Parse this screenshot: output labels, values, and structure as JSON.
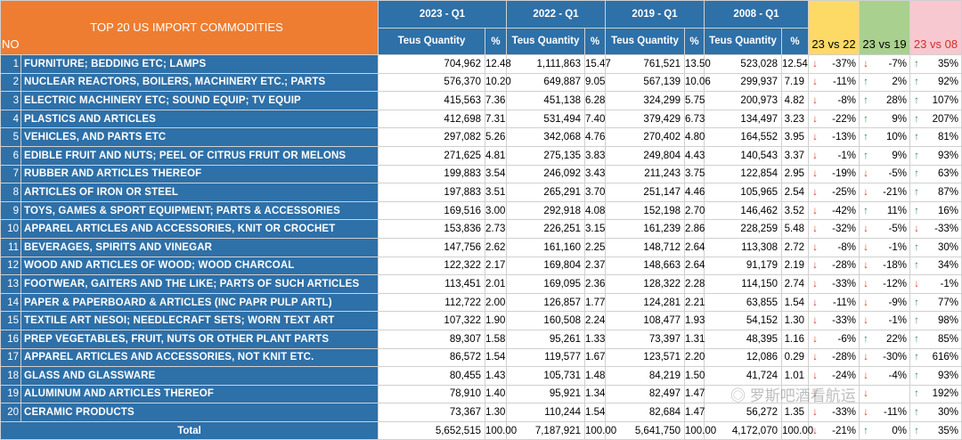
{
  "table_title": "TOP 20 US IMPORT COMMODITIES",
  "no_label": "NO",
  "period_headers": [
    "2023 - Q1",
    "2022 - Q1",
    "2019 - Q1",
    "2008 - Q1"
  ],
  "sub_headers": [
    {
      "qty": "Teus Quantity",
      "pct": "%"
    },
    {
      "qty": "Teus Quantity",
      "pct": "%"
    },
    {
      "qty": "Teus Quantity",
      "pct": "%"
    },
    {
      "qty": "Teus Quantity",
      "pct": "%"
    }
  ],
  "compare_headers": [
    "23 vs 22",
    "23 vs 19",
    "23 vs 08"
  ],
  "header_colors": {
    "orange": "#ee7d31",
    "blue": "#2e70a8",
    "yellow": "#fdd966",
    "green": "#a9d08e",
    "pink": "#f8c8d0"
  },
  "rows": [
    {
      "no": "1",
      "name": "FURNITURE; BEDDING ETC; LAMPS",
      "q23": "704,962",
      "p23": "12.48",
      "q22": "1,111,863",
      "p22": "15.47",
      "q19": "761,521",
      "p19": "13.50",
      "q08": "523,028",
      "p08": "12.54",
      "c1": "-37%",
      "c1d": "down",
      "c2": "-7%",
      "c2d": "down",
      "c3": "35%",
      "c3d": "up"
    },
    {
      "no": "2",
      "name": "NUCLEAR REACTORS, BOILERS, MACHINERY ETC.; PARTS",
      "q23": "576,370",
      "p23": "10.20",
      "q22": "649,887",
      "p22": "9.05",
      "q19": "567,139",
      "p19": "10.06",
      "q08": "299,937",
      "p08": "7.19",
      "c1": "-11%",
      "c1d": "down",
      "c2": "2%",
      "c2d": "up",
      "c3": "92%",
      "c3d": "up"
    },
    {
      "no": "3",
      "name": "ELECTRIC MACHINERY ETC; SOUND EQUIP; TV EQUIP",
      "q23": "415,563",
      "p23": "7.36",
      "q22": "451,138",
      "p22": "6.28",
      "q19": "324,299",
      "p19": "5.75",
      "q08": "200,973",
      "p08": "4.82",
      "c1": "-8%",
      "c1d": "down",
      "c2": "28%",
      "c2d": "up",
      "c3": "107%",
      "c3d": "up"
    },
    {
      "no": "4",
      "name": "PLASTICS AND ARTICLES",
      "q23": "412,698",
      "p23": "7.31",
      "q22": "531,494",
      "p22": "7.40",
      "q19": "379,429",
      "p19": "6.73",
      "q08": "134,497",
      "p08": "3.23",
      "c1": "-22%",
      "c1d": "down",
      "c2": "9%",
      "c2d": "up",
      "c3": "207%",
      "c3d": "up"
    },
    {
      "no": "5",
      "name": "VEHICLES, AND PARTS ETC",
      "q23": "297,082",
      "p23": "5.26",
      "q22": "342,068",
      "p22": "4.76",
      "q19": "270,402",
      "p19": "4.80",
      "q08": "164,552",
      "p08": "3.95",
      "c1": "-13%",
      "c1d": "down",
      "c2": "10%",
      "c2d": "up",
      "c3": "81%",
      "c3d": "up"
    },
    {
      "no": "6",
      "name": "EDIBLE FRUIT AND NUTS; PEEL OF CITRUS FRUIT OR MELONS",
      "q23": "271,625",
      "p23": "4.81",
      "q22": "275,135",
      "p22": "3.83",
      "q19": "249,804",
      "p19": "4.43",
      "q08": "140,543",
      "p08": "3.37",
      "c1": "-1%",
      "c1d": "down",
      "c2": "9%",
      "c2d": "up",
      "c3": "93%",
      "c3d": "up"
    },
    {
      "no": "7",
      "name": "RUBBER AND ARTICLES THEREOF",
      "q23": "199,883",
      "p23": "3.54",
      "q22": "246,092",
      "p22": "3.43",
      "q19": "211,243",
      "p19": "3.75",
      "q08": "122,854",
      "p08": "2.95",
      "c1": "-19%",
      "c1d": "down",
      "c2": "-5%",
      "c2d": "down",
      "c3": "63%",
      "c3d": "up"
    },
    {
      "no": "8",
      "name": "ARTICLES OF IRON OR STEEL",
      "q23": "197,883",
      "p23": "3.51",
      "q22": "265,291",
      "p22": "3.70",
      "q19": "251,147",
      "p19": "4.46",
      "q08": "105,965",
      "p08": "2.54",
      "c1": "-25%",
      "c1d": "down",
      "c2": "-21%",
      "c2d": "down",
      "c3": "87%",
      "c3d": "up"
    },
    {
      "no": "9",
      "name": "TOYS, GAMES & SPORT EQUIPMENT; PARTS & ACCESSORIES",
      "q23": "169,516",
      "p23": "3.00",
      "q22": "292,918",
      "p22": "4.08",
      "q19": "152,198",
      "p19": "2.70",
      "q08": "146,462",
      "p08": "3.52",
      "c1": "-42%",
      "c1d": "down",
      "c2": "11%",
      "c2d": "up",
      "c3": "16%",
      "c3d": "up"
    },
    {
      "no": "10",
      "name": "APPAREL ARTICLES AND ACCESSORIES, KNIT OR CROCHET",
      "q23": "153,836",
      "p23": "2.73",
      "q22": "226,251",
      "p22": "3.15",
      "q19": "161,239",
      "p19": "2.86",
      "q08": "228,259",
      "p08": "5.48",
      "c1": "-32%",
      "c1d": "down",
      "c2": "-5%",
      "c2d": "down",
      "c3": "-33%",
      "c3d": "down"
    },
    {
      "no": "11",
      "name": "BEVERAGES, SPIRITS AND VINEGAR",
      "q23": "147,756",
      "p23": "2.62",
      "q22": "161,160",
      "p22": "2.25",
      "q19": "148,712",
      "p19": "2.64",
      "q08": "113,308",
      "p08": "2.72",
      "c1": "-8%",
      "c1d": "down",
      "c2": "-1%",
      "c2d": "down",
      "c3": "30%",
      "c3d": "up"
    },
    {
      "no": "12",
      "name": "WOOD AND ARTICLES OF WOOD; WOOD CHARCOAL",
      "q23": "122,322",
      "p23": "2.17",
      "q22": "169,804",
      "p22": "2.37",
      "q19": "148,663",
      "p19": "2.64",
      "q08": "91,179",
      "p08": "2.19",
      "c1": "-28%",
      "c1d": "down",
      "c2": "-18%",
      "c2d": "down",
      "c3": "34%",
      "c3d": "up"
    },
    {
      "no": "13",
      "name": "FOOTWEAR, GAITERS AND THE LIKE; PARTS OF SUCH ARTICLES",
      "q23": "113,451",
      "p23": "2.01",
      "q22": "169,095",
      "p22": "2.36",
      "q19": "128,322",
      "p19": "2.28",
      "q08": "114,150",
      "p08": "2.74",
      "c1": "-33%",
      "c1d": "down",
      "c2": "-12%",
      "c2d": "down",
      "c3": "-1%",
      "c3d": "down"
    },
    {
      "no": "14",
      "name": "PAPER & PAPERBOARD & ARTICLES (INC PAPR PULP ARTL)",
      "q23": "112,722",
      "p23": "2.00",
      "q22": "126,857",
      "p22": "1.77",
      "q19": "124,281",
      "p19": "2.21",
      "q08": "63,855",
      "p08": "1.54",
      "c1": "-11%",
      "c1d": "down",
      "c2": "-9%",
      "c2d": "down",
      "c3": "77%",
      "c3d": "up"
    },
    {
      "no": "15",
      "name": "TEXTILE ART NESOI; NEEDLECRAFT SETS; WORN TEXT ART",
      "q23": "107,322",
      "p23": "1.90",
      "q22": "160,508",
      "p22": "2.24",
      "q19": "108,477",
      "p19": "1.93",
      "q08": "54,152",
      "p08": "1.30",
      "c1": "-33%",
      "c1d": "down",
      "c2": "-1%",
      "c2d": "down",
      "c3": "98%",
      "c3d": "up"
    },
    {
      "no": "16",
      "name": "PREP VEGETABLES, FRUIT, NUTS OR OTHER PLANT PARTS",
      "q23": "89,307",
      "p23": "1.58",
      "q22": "95,261",
      "p22": "1.33",
      "q19": "73,397",
      "p19": "1.31",
      "q08": "48,395",
      "p08": "1.16",
      "c1": "-6%",
      "c1d": "down",
      "c2": "22%",
      "c2d": "up",
      "c3": "85%",
      "c3d": "up"
    },
    {
      "no": "17",
      "name": "APPAREL ARTICLES AND ACCESSORIES, NOT KNIT ETC.",
      "q23": "86,572",
      "p23": "1.54",
      "q22": "119,577",
      "p22": "1.67",
      "q19": "123,571",
      "p19": "2.20",
      "q08": "12,086",
      "p08": "0.29",
      "c1": "-28%",
      "c1d": "down",
      "c2": "-30%",
      "c2d": "down",
      "c3": "616%",
      "c3d": "up"
    },
    {
      "no": "18",
      "name": "GLASS AND GLASSWARE",
      "q23": "80,455",
      "p23": "1.43",
      "q22": "105,731",
      "p22": "1.48",
      "q19": "84,219",
      "p19": "1.50",
      "q08": "41,724",
      "p08": "1.01",
      "c1": "-24%",
      "c1d": "down",
      "c2": "-4%",
      "c2d": "down",
      "c3": "93%",
      "c3d": "up"
    },
    {
      "no": "19",
      "name": "ALUMINUM AND ARTICLES THEREOF",
      "q23": "78,910",
      "p23": "1.40",
      "q22": "95,921",
      "p22": "1.34",
      "q19": "82,497",
      "p19": "1.47",
      "q08": "",
      "p08": "",
      "c1": "",
      "c1d": "down",
      "c2": "",
      "c2d": "down",
      "c3": "192%",
      "c3d": "up"
    },
    {
      "no": "20",
      "name": "CERAMIC PRODUCTS",
      "q23": "73,367",
      "p23": "1.30",
      "q22": "110,244",
      "p22": "1.54",
      "q19": "82,684",
      "p19": "1.47",
      "q08": "56,272",
      "p08": "1.35",
      "c1": "-33%",
      "c1d": "down",
      "c2": "-11%",
      "c2d": "down",
      "c3": "30%",
      "c3d": "up"
    }
  ],
  "total": {
    "label": "Total",
    "q23": "5,652,515",
    "p23": "100.00",
    "q22": "7,187,921",
    "p22": "100.00",
    "q19": "5,641,750",
    "p19": "100.00",
    "q08": "4,172,070",
    "p08": "100.00",
    "c1": "-21%",
    "c1d": "down",
    "c2": "0%",
    "c2d": "up",
    "c3": "35%",
    "c3d": "up"
  },
  "arrow_colors": {
    "up": "#3e8f5a",
    "down": "#d0452a"
  },
  "icons": {
    "up": "arrow-up-icon",
    "down": "arrow-down-icon"
  },
  "watermark": "罗斯吧酒看航运"
}
